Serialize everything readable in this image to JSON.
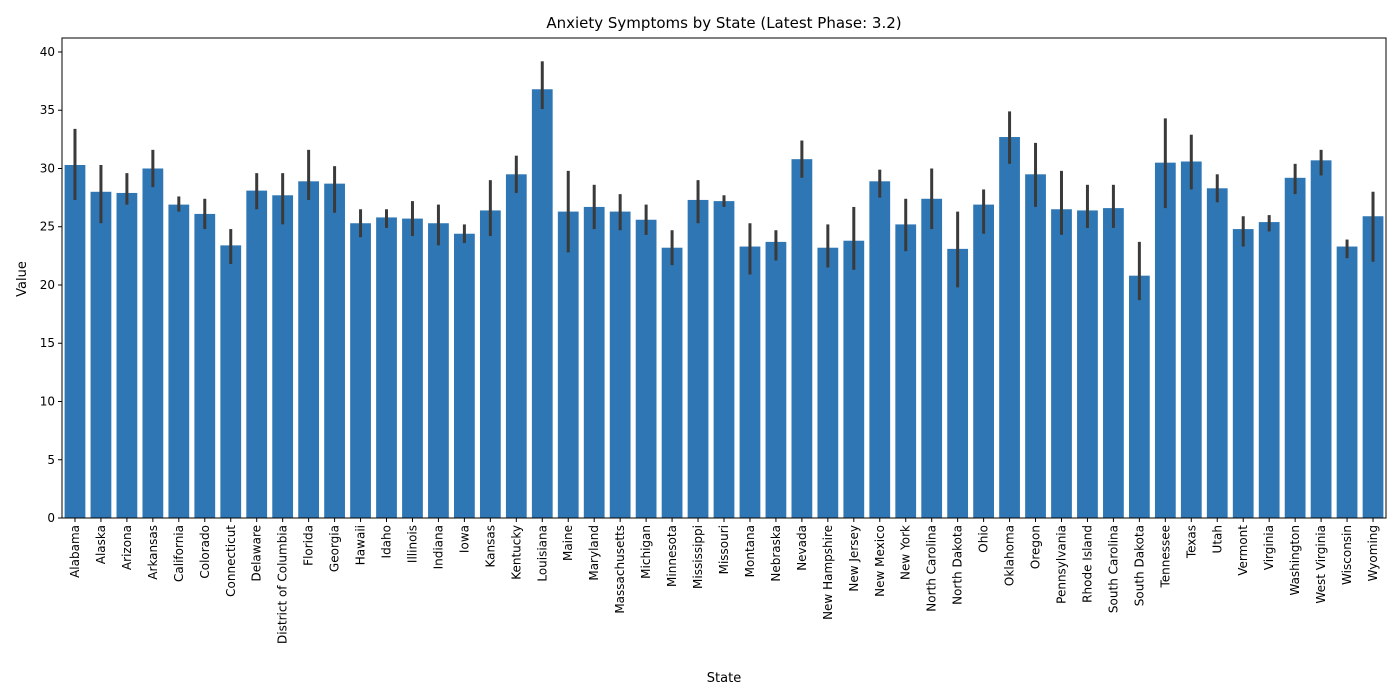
{
  "chart_data": {
    "type": "bar",
    "title": "Anxiety Symptoms by State (Latest Phase: 3.2)",
    "xlabel": "State",
    "ylabel": "Value",
    "ylim": [
      0,
      41.2
    ],
    "yticks": [
      0,
      5,
      10,
      15,
      20,
      25,
      30,
      35,
      40
    ],
    "grid": false,
    "bar_color": "#2f77b4",
    "errorbar_color": "#3a3a3a",
    "categories": [
      "Alabama",
      "Alaska",
      "Arizona",
      "Arkansas",
      "California",
      "Colorado",
      "Connecticut",
      "Delaware",
      "District of Columbia",
      "Florida",
      "Georgia",
      "Hawaii",
      "Idaho",
      "Illinois",
      "Indiana",
      "Iowa",
      "Kansas",
      "Kentucky",
      "Louisiana",
      "Maine",
      "Maryland",
      "Massachusetts",
      "Michigan",
      "Minnesota",
      "Mississippi",
      "Missouri",
      "Montana",
      "Nebraska",
      "Nevada",
      "New Hampshire",
      "New Jersey",
      "New Mexico",
      "New York",
      "North Carolina",
      "North Dakota",
      "Ohio",
      "Oklahoma",
      "Oregon",
      "Pennsylvania",
      "Rhode Island",
      "South Carolina",
      "South Dakota",
      "Tennessee",
      "Texas",
      "Utah",
      "Vermont",
      "Virginia",
      "Washington",
      "West Virginia",
      "Wisconsin",
      "Wyoming"
    ],
    "values": [
      30.3,
      28.0,
      27.9,
      30.0,
      26.9,
      26.1,
      23.4,
      28.1,
      27.7,
      28.9,
      28.7,
      25.3,
      25.8,
      25.7,
      25.3,
      24.4,
      26.4,
      29.5,
      36.8,
      26.3,
      26.7,
      26.3,
      25.6,
      23.2,
      27.3,
      27.2,
      23.3,
      23.7,
      30.8,
      23.2,
      23.8,
      28.9,
      25.2,
      27.4,
      23.1,
      26.9,
      32.7,
      29.5,
      26.5,
      26.4,
      26.6,
      20.8,
      30.5,
      30.6,
      28.3,
      24.8,
      25.4,
      29.2,
      30.7,
      23.3,
      25.9
    ],
    "error_low": [
      27.3,
      25.3,
      26.9,
      28.4,
      26.3,
      24.8,
      21.8,
      26.5,
      25.2,
      27.3,
      26.2,
      24.1,
      24.9,
      24.2,
      23.4,
      23.6,
      24.2,
      27.9,
      35.1,
      22.8,
      24.8,
      24.7,
      24.3,
      21.7,
      25.3,
      26.7,
      20.9,
      22.1,
      29.2,
      21.5,
      21.3,
      27.5,
      22.9,
      24.8,
      19.8,
      24.4,
      30.4,
      26.7,
      24.3,
      24.9,
      24.9,
      18.7,
      26.6,
      28.2,
      27.1,
      23.3,
      24.6,
      27.8,
      29.4,
      22.3,
      22.0
    ],
    "error_high": [
      33.4,
      30.3,
      29.6,
      31.6,
      27.6,
      27.4,
      24.8,
      29.6,
      29.6,
      31.6,
      30.2,
      26.5,
      26.5,
      27.2,
      26.9,
      25.2,
      29.0,
      31.1,
      39.2,
      29.8,
      28.6,
      27.8,
      26.9,
      24.7,
      29.0,
      27.7,
      25.3,
      24.7,
      32.4,
      25.2,
      26.7,
      29.9,
      27.4,
      30.0,
      26.3,
      28.2,
      34.9,
      32.2,
      29.8,
      28.6,
      28.6,
      23.7,
      34.3,
      32.9,
      29.5,
      25.9,
      26.0,
      30.4,
      31.6,
      23.9,
      28.0
    ]
  }
}
